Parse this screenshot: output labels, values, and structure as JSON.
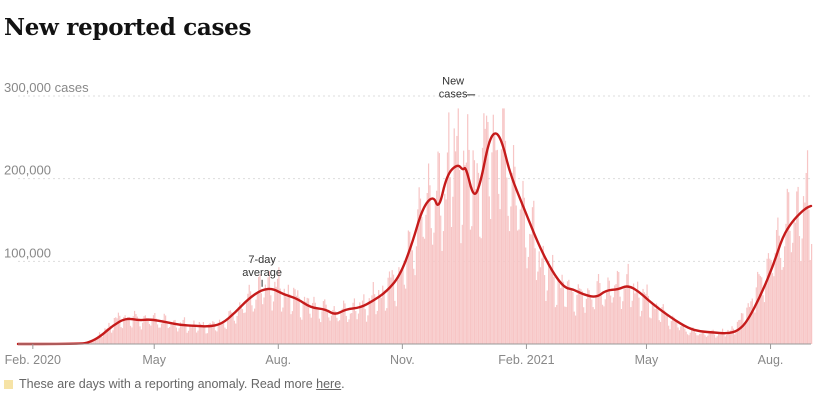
{
  "title": "New reported cases",
  "footnote": {
    "text": "These are days with a reporting anomaly. Read more ",
    "link_text": "here",
    "end": "."
  },
  "colors": {
    "bars": "#f7c5c5",
    "line": "#c51b1b",
    "anomaly": "#f6e3a6",
    "grid": "#dddddd",
    "tick_text": "#888888"
  },
  "chart_data": {
    "type": "line",
    "title": "New reported cases",
    "xlabel": "",
    "ylabel": "",
    "x_range": [
      "2020-01-21",
      "2021-08-31"
    ],
    "ylim": [
      0,
      300000
    ],
    "y_ticks": [
      {
        "value": 100000,
        "label": "100,000"
      },
      {
        "value": 200000,
        "label": "200,000"
      },
      {
        "value": 300000,
        "label": "300,000 cases"
      }
    ],
    "x_ticks": [
      {
        "date": "2020-02-01",
        "label": "Feb. 2020"
      },
      {
        "date": "2020-05-01",
        "label": "May"
      },
      {
        "date": "2020-08-01",
        "label": "Aug."
      },
      {
        "date": "2020-11-01",
        "label": "Nov."
      },
      {
        "date": "2021-02-01",
        "label": "Feb. 2021"
      },
      {
        "date": "2021-05-01",
        "label": "May"
      },
      {
        "date": "2021-08-01",
        "label": "Aug."
      }
    ],
    "grid": true,
    "annotations": [
      {
        "lines": [
          "7-day",
          "average"
        ],
        "date": "2020-07-20",
        "value": 68000,
        "anchor": "above"
      },
      {
        "lines": [
          "New",
          "cases"
        ],
        "date": "2020-12-22",
        "value": 302000,
        "anchor": "left"
      }
    ],
    "series": [
      {
        "kind": "bars",
        "points": [
          [
            "2020-01-21",
            0
          ],
          [
            "2020-03-01",
            0
          ],
          [
            "2020-03-10",
            900
          ],
          [
            "2020-03-17",
            5000
          ],
          [
            "2020-03-24",
            14000
          ],
          [
            "2020-04-01",
            27000
          ],
          [
            "2020-04-10",
            31000
          ],
          [
            "2020-04-20",
            29000
          ],
          [
            "2020-05-01",
            29000
          ],
          [
            "2020-05-15",
            24000
          ],
          [
            "2020-06-01",
            21000
          ],
          [
            "2020-06-15",
            22000
          ],
          [
            "2020-06-25",
            30000
          ],
          [
            "2020-07-05",
            45000
          ],
          [
            "2020-07-15",
            60000
          ],
          [
            "2020-07-25",
            70000
          ],
          [
            "2020-08-05",
            60000
          ],
          [
            "2020-08-15",
            52000
          ],
          [
            "2020-09-01",
            42000
          ],
          [
            "2020-09-15",
            36000
          ],
          [
            "2020-10-01",
            44000
          ],
          [
            "2020-10-15",
            57000
          ],
          [
            "2020-11-01",
            85000
          ],
          [
            "2020-11-10",
            130000
          ],
          [
            "2020-11-20",
            175000
          ],
          [
            "2020-11-30",
            165000
          ],
          [
            "2020-12-05",
            215000
          ],
          [
            "2020-12-15",
            215000
          ],
          [
            "2020-12-25",
            190000
          ],
          [
            "2021-01-05",
            240000
          ],
          [
            "2021-01-15",
            225000
          ],
          [
            "2021-01-25",
            170000
          ],
          [
            "2021-02-05",
            125000
          ],
          [
            "2021-02-15",
            85000
          ],
          [
            "2021-03-01",
            64000
          ],
          [
            "2021-03-15",
            55000
          ],
          [
            "2021-04-01",
            64000
          ],
          [
            "2021-04-15",
            70000
          ],
          [
            "2021-05-01",
            52000
          ],
          [
            "2021-05-15",
            34000
          ],
          [
            "2021-06-01",
            15000
          ],
          [
            "2021-06-15",
            12000
          ],
          [
            "2021-07-01",
            14000
          ],
          [
            "2021-07-10",
            28000
          ],
          [
            "2021-07-20",
            58000
          ],
          [
            "2021-08-01",
            100000
          ],
          [
            "2021-08-10",
            130000
          ],
          [
            "2021-08-20",
            155000
          ],
          [
            "2021-08-31",
            165000
          ]
        ]
      },
      {
        "kind": "line",
        "name": "7-day average",
        "points": [
          [
            "2020-01-21",
            0
          ],
          [
            "2020-03-07",
            0
          ],
          [
            "2020-03-14",
            2000
          ],
          [
            "2020-03-22",
            9000
          ],
          [
            "2020-03-31",
            22000
          ],
          [
            "2020-04-10",
            31500
          ],
          [
            "2020-04-20",
            28500
          ],
          [
            "2020-04-28",
            30000
          ],
          [
            "2020-05-10",
            26500
          ],
          [
            "2020-05-20",
            23000
          ],
          [
            "2020-06-01",
            22000
          ],
          [
            "2020-06-10",
            21000
          ],
          [
            "2020-06-20",
            24000
          ],
          [
            "2020-06-30",
            38000
          ],
          [
            "2020-07-10",
            55000
          ],
          [
            "2020-07-20",
            66000
          ],
          [
            "2020-07-28",
            67000
          ],
          [
            "2020-08-05",
            60000
          ],
          [
            "2020-08-15",
            55000
          ],
          [
            "2020-08-25",
            44000
          ],
          [
            "2020-09-05",
            42000
          ],
          [
            "2020-09-12",
            35000
          ],
          [
            "2020-09-20",
            42000
          ],
          [
            "2020-10-01",
            44000
          ],
          [
            "2020-10-10",
            52000
          ],
          [
            "2020-10-20",
            63000
          ],
          [
            "2020-10-30",
            82000
          ],
          [
            "2020-11-08",
            120000
          ],
          [
            "2020-11-16",
            165000
          ],
          [
            "2020-11-24",
            180000
          ],
          [
            "2020-11-28",
            162000
          ],
          [
            "2020-12-04",
            205000
          ],
          [
            "2020-12-12",
            218000
          ],
          [
            "2020-12-16",
            210000
          ],
          [
            "2020-12-18",
            215000
          ],
          [
            "2020-12-24",
            175000
          ],
          [
            "2020-12-29",
            195000
          ],
          [
            "2021-01-04",
            245000
          ],
          [
            "2021-01-09",
            258000
          ],
          [
            "2021-01-14",
            245000
          ],
          [
            "2021-01-20",
            205000
          ],
          [
            "2021-01-30",
            165000
          ],
          [
            "2021-02-10",
            120000
          ],
          [
            "2021-02-20",
            88000
          ],
          [
            "2021-03-01",
            68000
          ],
          [
            "2021-03-08",
            66000
          ],
          [
            "2021-03-15",
            60000
          ],
          [
            "2021-03-25",
            56000
          ],
          [
            "2021-04-01",
            65000
          ],
          [
            "2021-04-10",
            66000
          ],
          [
            "2021-04-17",
            71000
          ],
          [
            "2021-04-25",
            64000
          ],
          [
            "2021-05-05",
            49000
          ],
          [
            "2021-05-20",
            31000
          ],
          [
            "2021-06-01",
            19000
          ],
          [
            "2021-06-10",
            15000
          ],
          [
            "2021-06-20",
            14000
          ],
          [
            "2021-06-30",
            12500
          ],
          [
            "2021-07-08",
            16000
          ],
          [
            "2021-07-15",
            28000
          ],
          [
            "2021-07-25",
            60000
          ],
          [
            "2021-08-03",
            95000
          ],
          [
            "2021-08-10",
            130000
          ],
          [
            "2021-08-17",
            148000
          ],
          [
            "2021-08-24",
            160000
          ],
          [
            "2021-08-28",
            165000
          ],
          [
            "2021-08-31",
            167000
          ]
        ]
      }
    ]
  }
}
